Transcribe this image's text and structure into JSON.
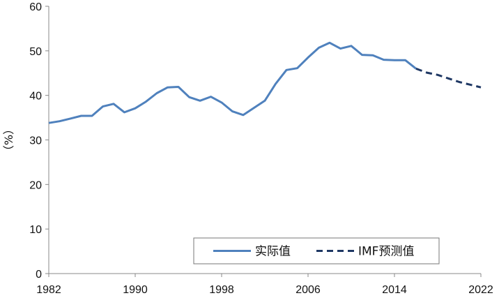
{
  "chart_data": {
    "type": "line",
    "ylabel": "（%）",
    "ylim": [
      0,
      60
    ],
    "yticks": [
      0,
      10,
      20,
      30,
      40,
      50,
      60
    ],
    "xlim": [
      1982,
      2022
    ],
    "xticks": [
      1982,
      1990,
      1998,
      2006,
      2014,
      2022
    ],
    "grid": false,
    "legend_position": "bottom-right",
    "series": [
      {
        "name": "实际值",
        "style": "solid",
        "color": "#4F81BD",
        "x": [
          1982,
          1983,
          1984,
          1985,
          1986,
          1987,
          1988,
          1989,
          1990,
          1991,
          1992,
          1993,
          1994,
          1995,
          1996,
          1997,
          1998,
          1999,
          2000,
          2001,
          2002,
          2003,
          2004,
          2005,
          2006,
          2007,
          2008,
          2009,
          2010,
          2011,
          2012,
          2013,
          2014,
          2015,
          2016
        ],
        "y": [
          33.8,
          34.2,
          34.8,
          35.4,
          35.4,
          37.5,
          38.1,
          36.2,
          37.1,
          38.6,
          40.5,
          41.8,
          41.9,
          39.6,
          38.8,
          39.7,
          38.4,
          36.4,
          35.6,
          37.2,
          38.8,
          42.6,
          45.7,
          46.1,
          48.5,
          50.7,
          51.8,
          50.5,
          51.1,
          49.1,
          49.0,
          48.0,
          47.9,
          47.9,
          46.0
        ]
      },
      {
        "name": "IMF预测值",
        "style": "dashed",
        "color": "#1F3864",
        "x": [
          2016,
          2017,
          2018,
          2019,
          2020,
          2021,
          2022
        ],
        "y": [
          46.0,
          45.1,
          44.6,
          43.8,
          43.0,
          42.4,
          41.8
        ]
      }
    ]
  }
}
